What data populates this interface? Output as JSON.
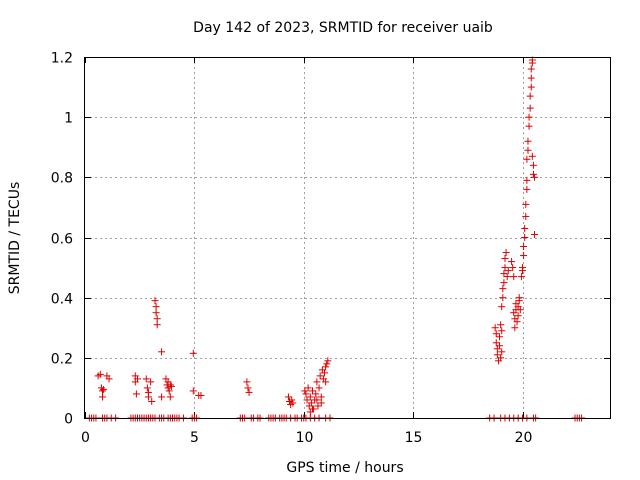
{
  "chart_data": {
    "type": "scatter",
    "title": "Day 142 of 2023, SRMTID for receiver uaib",
    "xlabel": "GPS time / hours",
    "ylabel": "SRMTID / TECUs",
    "xlim": [
      0,
      24
    ],
    "ylim": [
      0,
      1.2
    ],
    "xticks": [
      0,
      5,
      10,
      15,
      20
    ],
    "xtick_labels": [
      "0",
      "5",
      "10",
      "15",
      "20"
    ],
    "yticks": [
      0,
      0.2,
      0.4,
      0.6,
      0.8,
      1.0,
      1.2
    ],
    "ytick_labels": [
      "0",
      "0.2",
      "0.4",
      "0.6",
      "0.8",
      "1",
      "1.2"
    ],
    "grid": true,
    "marker": "+",
    "series": [
      {
        "name": "SRMTID",
        "color": "#e00000",
        "points": [
          [
            0.6,
            0.14
          ],
          [
            0.7,
            0.145
          ],
          [
            0.75,
            0.1
          ],
          [
            0.8,
            0.09
          ],
          [
            0.8,
            0.07
          ],
          [
            0.85,
            0.095
          ],
          [
            1.0,
            0.14
          ],
          [
            1.1,
            0.13
          ],
          [
            2.3,
            0.14
          ],
          [
            2.3,
            0.12
          ],
          [
            2.35,
            0.08
          ],
          [
            2.4,
            0.13
          ],
          [
            2.8,
            0.13
          ],
          [
            2.85,
            0.1
          ],
          [
            2.9,
            0.085
          ],
          [
            2.9,
            0.07
          ],
          [
            3.0,
            0.12
          ],
          [
            3.05,
            0.055
          ],
          [
            3.2,
            0.39
          ],
          [
            3.25,
            0.37
          ],
          [
            3.25,
            0.35
          ],
          [
            3.3,
            0.33
          ],
          [
            3.3,
            0.31
          ],
          [
            3.5,
            0.22
          ],
          [
            3.5,
            0.07
          ],
          [
            3.7,
            0.13
          ],
          [
            3.75,
            0.11
          ],
          [
            3.8,
            0.12
          ],
          [
            3.8,
            0.1
          ],
          [
            3.85,
            0.09
          ],
          [
            3.9,
            0.11
          ],
          [
            3.95,
            0.105
          ],
          [
            3.9,
            0.07
          ],
          [
            4.95,
            0.215
          ],
          [
            4.95,
            0.09
          ],
          [
            5.2,
            0.075
          ],
          [
            5.3,
            0.075
          ],
          [
            7.4,
            0.12
          ],
          [
            7.45,
            0.1
          ],
          [
            7.5,
            0.085
          ],
          [
            9.3,
            0.07
          ],
          [
            9.35,
            0.055
          ],
          [
            9.4,
            0.045
          ],
          [
            9.45,
            0.06
          ],
          [
            9.5,
            0.05
          ],
          [
            10.05,
            0.09
          ],
          [
            10.1,
            0.08
          ],
          [
            10.15,
            0.06
          ],
          [
            10.2,
            0.1
          ],
          [
            10.25,
            0.04
          ],
          [
            10.3,
            0.07
          ],
          [
            10.3,
            0.02
          ],
          [
            10.35,
            0.05
          ],
          [
            10.4,
            0.09
          ],
          [
            10.45,
            0.03
          ],
          [
            10.5,
            0.06
          ],
          [
            10.55,
            0.08
          ],
          [
            10.6,
            0.12
          ],
          [
            10.65,
            0.04
          ],
          [
            10.7,
            0.1
          ],
          [
            10.75,
            0.14
          ],
          [
            10.8,
            0.07
          ],
          [
            10.85,
            0.16
          ],
          [
            10.9,
            0.13
          ],
          [
            10.95,
            0.15
          ],
          [
            11.0,
            0.17
          ],
          [
            11.05,
            0.18
          ],
          [
            11.1,
            0.19
          ],
          [
            11.0,
            0.12
          ],
          [
            10.8,
            0.05
          ],
          [
            10.6,
            0.06
          ],
          [
            10.4,
            0.03
          ],
          [
            18.75,
            0.3
          ],
          [
            18.8,
            0.28
          ],
          [
            18.8,
            0.25
          ],
          [
            18.85,
            0.23
          ],
          [
            18.85,
            0.21
          ],
          [
            18.9,
            0.19
          ],
          [
            18.95,
            0.27
          ],
          [
            18.95,
            0.24
          ],
          [
            19.0,
            0.31
          ],
          [
            19.0,
            0.2
          ],
          [
            19.05,
            0.29
          ],
          [
            19.05,
            0.22
          ],
          [
            19.05,
            0.37
          ],
          [
            19.1,
            0.4
          ],
          [
            19.1,
            0.43
          ],
          [
            19.15,
            0.45
          ],
          [
            19.15,
            0.48
          ],
          [
            19.2,
            0.5
          ],
          [
            19.2,
            0.53
          ],
          [
            19.25,
            0.55
          ],
          [
            19.3,
            0.47
          ],
          [
            19.35,
            0.49
          ],
          [
            19.5,
            0.52
          ],
          [
            19.55,
            0.5
          ],
          [
            19.6,
            0.47
          ],
          [
            19.6,
            0.35
          ],
          [
            19.65,
            0.33
          ],
          [
            19.65,
            0.3
          ],
          [
            19.7,
            0.38
          ],
          [
            19.7,
            0.36
          ],
          [
            19.75,
            0.32
          ],
          [
            19.8,
            0.34
          ],
          [
            19.8,
            0.37
          ],
          [
            19.85,
            0.39
          ],
          [
            19.85,
            0.4
          ],
          [
            19.9,
            0.36
          ],
          [
            19.95,
            0.47
          ],
          [
            20.0,
            0.5
          ],
          [
            20.0,
            0.49
          ],
          [
            20.05,
            0.54
          ],
          [
            20.05,
            0.57
          ],
          [
            20.1,
            0.6
          ],
          [
            20.1,
            0.63
          ],
          [
            20.15,
            0.67
          ],
          [
            20.15,
            0.71
          ],
          [
            20.2,
            0.76
          ],
          [
            20.2,
            0.79
          ],
          [
            20.2,
            0.86
          ],
          [
            20.25,
            0.89
          ],
          [
            20.25,
            0.92
          ],
          [
            20.3,
            0.97
          ],
          [
            20.3,
            1.0
          ],
          [
            20.35,
            1.03
          ],
          [
            20.35,
            1.07
          ],
          [
            20.4,
            1.1
          ],
          [
            20.4,
            1.13
          ],
          [
            20.4,
            1.16
          ],
          [
            20.45,
            1.18
          ],
          [
            20.45,
            1.19
          ],
          [
            20.45,
            0.87
          ],
          [
            20.5,
            0.84
          ],
          [
            20.5,
            0.81
          ],
          [
            20.55,
            0.8
          ],
          [
            20.55,
            0.61
          ]
        ]
      },
      {
        "name": "zero",
        "color": "#e00000",
        "x": [
          0.2,
          0.3,
          0.4,
          0.5,
          0.8,
          0.9,
          1.0,
          1.2,
          1.4,
          2.1,
          2.2,
          2.3,
          2.4,
          2.5,
          2.6,
          2.7,
          2.8,
          2.9,
          3.0,
          3.1,
          3.2,
          3.4,
          3.5,
          3.6,
          3.8,
          3.9,
          4.0,
          4.1,
          4.2,
          4.3,
          4.5,
          4.9,
          5.0,
          5.1,
          7.1,
          7.2,
          7.3,
          7.6,
          7.7,
          7.9,
          8.0,
          8.4,
          8.5,
          8.6,
          8.7,
          8.9,
          9.0,
          9.1,
          9.2,
          9.4,
          9.6,
          9.7,
          9.9,
          10.0,
          10.1,
          10.3,
          10.5,
          10.7,
          11.0,
          11.2,
          18.5,
          18.7,
          19.0,
          19.2,
          19.4,
          19.6,
          19.8,
          20.0,
          20.2,
          20.5,
          20.6,
          22.4,
          22.5,
          22.6,
          22.7
        ]
      }
    ]
  }
}
